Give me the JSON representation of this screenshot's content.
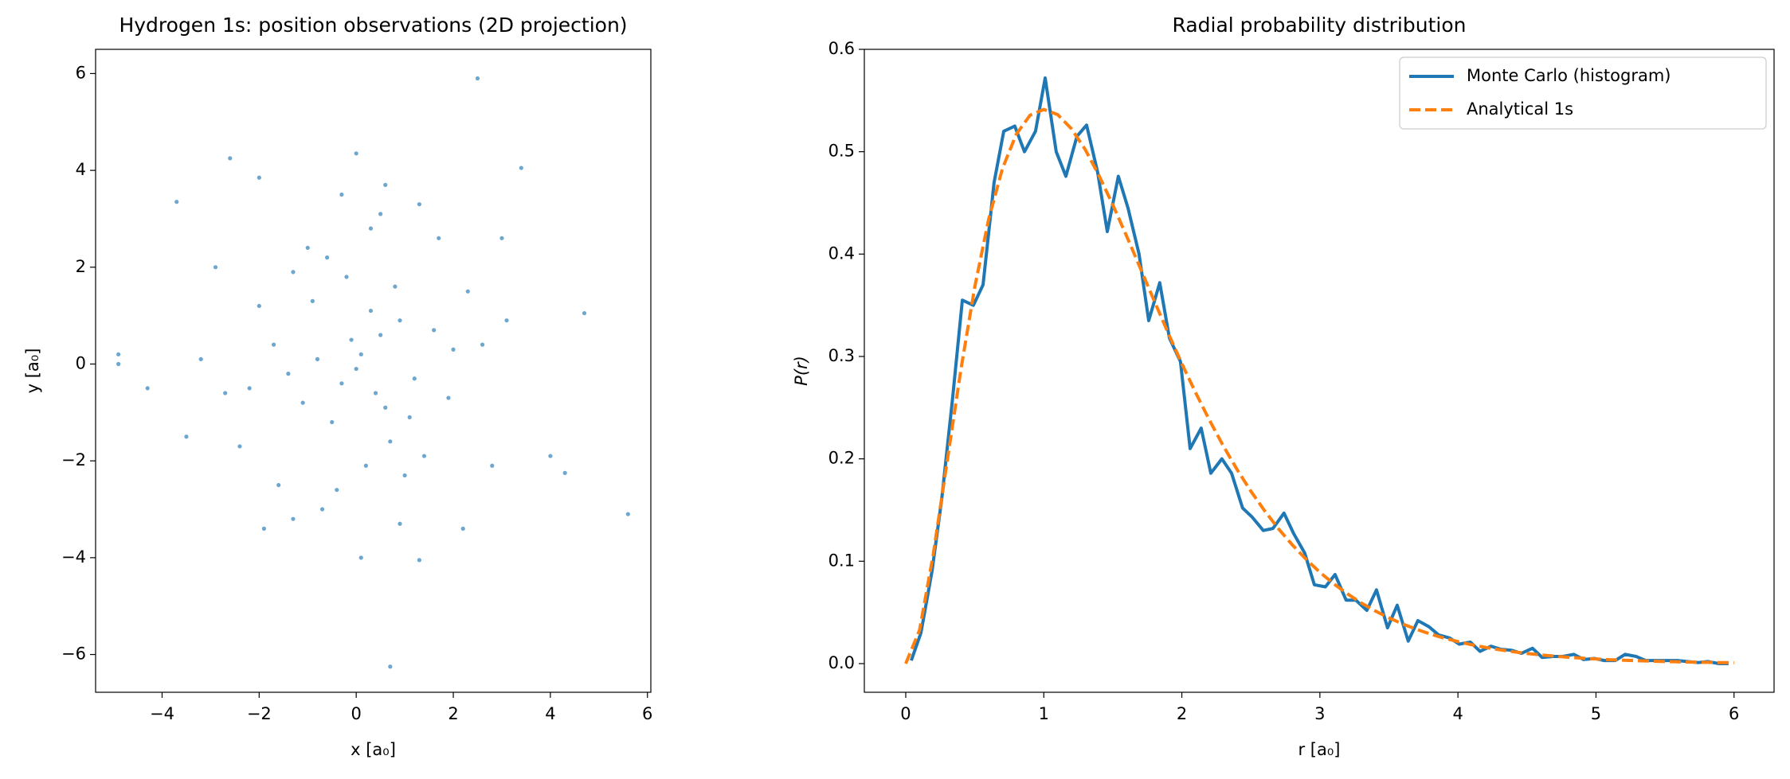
{
  "chart_data": [
    {
      "type": "scatter",
      "title": "Hydrogen 1s: position observations (2D projection)",
      "x_label": "x [a₀]",
      "y_label": "y [a₀]",
      "color": "#1f77b4",
      "x": [
        0.1,
        -0.3,
        0.5,
        -0.8,
        1.2,
        -1.1,
        0.3,
        0.9,
        -0.5,
        0.0,
        1.6,
        -1.7,
        0.7,
        -0.2,
        0.4,
        -0.9,
        1.1,
        -1.4,
        2.0,
        -2.2,
        0.2,
        -0.6,
        0.8,
        1.4,
        -1.3,
        0.6,
        -0.1,
        1.9,
        -2.0,
        2.6,
        -2.7,
        0.3,
        -0.4,
        1.0,
        -1.0,
        0.5,
        -0.7,
        2.3,
        -2.4,
        1.7,
        -1.6,
        3.1,
        -3.2,
        0.9,
        -0.3,
        1.3,
        -1.9,
        2.8,
        -2.9,
        0.1,
        2.5,
        0.7,
        5.6,
        -4.9,
        -4.9,
        4.7,
        -3.7,
        3.4,
        -2.6,
        0.0,
        1.3,
        -4.3,
        4.3,
        -2.0,
        3.0,
        -1.3,
        2.2,
        4.0,
        -3.5,
        0.6
      ],
      "y": [
        0.2,
        -0.4,
        0.6,
        0.1,
        -0.3,
        -0.8,
        1.1,
        0.9,
        -1.2,
        -0.1,
        0.7,
        0.4,
        -1.6,
        1.8,
        -0.6,
        1.3,
        -1.1,
        -0.2,
        0.3,
        -0.5,
        -2.1,
        2.2,
        1.6,
        -1.9,
        1.9,
        -0.9,
        0.5,
        -0.7,
        1.2,
        0.4,
        -0.6,
        2.8,
        -2.6,
        -2.3,
        2.4,
        3.1,
        -3.0,
        1.5,
        -1.7,
        2.6,
        -2.5,
        0.9,
        0.1,
        -3.3,
        3.5,
        3.3,
        -3.4,
        -2.1,
        2.0,
        -4.0,
        5.9,
        -6.25,
        -3.1,
        0.2,
        0.0,
        1.05,
        3.35,
        4.05,
        4.25,
        4.35,
        -4.05,
        -0.5,
        -2.25,
        3.85,
        2.6,
        -3.2,
        -3.4,
        -1.9,
        -1.5,
        3.7
      ],
      "xlim": [
        -5.37,
        6.07
      ],
      "ylim": [
        -6.78,
        6.5
      ],
      "xticks": [
        {
          "value": -4,
          "label": "−4"
        },
        {
          "value": -2,
          "label": "−2"
        },
        0,
        2,
        4,
        6
      ],
      "yticks": [
        {
          "value": -6,
          "label": "−6"
        },
        {
          "value": -4,
          "label": "−4"
        },
        {
          "value": -2,
          "label": "−2"
        },
        0,
        2,
        4,
        6
      ]
    },
    {
      "type": "line",
      "title": "Radial probability distribution",
      "x_label": "r [a₀]",
      "y_label": "P(r)",
      "legend": "upper right",
      "xlim": [
        -0.3,
        6.29
      ],
      "ylim": [
        -0.028,
        0.6
      ],
      "xticks": [
        0,
        1,
        2,
        3,
        4,
        5,
        6
      ],
      "yticks": [
        {
          "value": 0,
          "label": "0.0"
        },
        0.1,
        0.2,
        0.3,
        0.4,
        0.5,
        0.6
      ],
      "series": [
        {
          "name": "Monte Carlo (histogram)",
          "color": "#1f77b4",
          "dash": false,
          "x": [
            0.04,
            0.11,
            0.19,
            0.26,
            0.34,
            0.41,
            0.49,
            0.56,
            0.64,
            0.71,
            0.79,
            0.86,
            0.94,
            1.01,
            1.09,
            1.16,
            1.24,
            1.31,
            1.39,
            1.46,
            1.54,
            1.61,
            1.69,
            1.76,
            1.84,
            1.91,
            1.99,
            2.06,
            2.14,
            2.21,
            2.29,
            2.36,
            2.44,
            2.51,
            2.59,
            2.66,
            2.74,
            2.81,
            2.89,
            2.96,
            3.04,
            3.11,
            3.19,
            3.26,
            3.34,
            3.41,
            3.49,
            3.56,
            3.64,
            3.71,
            3.79,
            3.86,
            3.94,
            4.01,
            4.09,
            4.16,
            4.24,
            4.31,
            4.39,
            4.46,
            4.54,
            4.61,
            4.69,
            4.76,
            4.84,
            4.91,
            4.99,
            5.06,
            5.14,
            5.21,
            5.29,
            5.36,
            5.44,
            5.51,
            5.59,
            5.66,
            5.74,
            5.81,
            5.89,
            5.96
          ],
          "values": [
            0.003,
            0.03,
            0.09,
            0.16,
            0.26,
            0.355,
            0.35,
            0.37,
            0.47,
            0.52,
            0.525,
            0.5,
            0.52,
            0.572,
            0.5,
            0.476,
            0.515,
            0.526,
            0.48,
            0.422,
            0.476,
            0.445,
            0.4,
            0.335,
            0.372,
            0.318,
            0.295,
            0.21,
            0.23,
            0.186,
            0.2,
            0.186,
            0.152,
            0.143,
            0.13,
            0.132,
            0.147,
            0.127,
            0.108,
            0.077,
            0.075,
            0.087,
            0.062,
            0.062,
            0.052,
            0.072,
            0.035,
            0.057,
            0.022,
            0.042,
            0.036,
            0.028,
            0.025,
            0.019,
            0.021,
            0.012,
            0.017,
            0.014,
            0.013,
            0.01,
            0.015,
            0.006,
            0.007,
            0.007,
            0.009,
            0.004,
            0.005,
            0.003,
            0.003,
            0.009,
            0.007,
            0.003,
            0.003,
            0.003,
            0.003,
            0.002,
            0.001,
            0.002,
            0.0,
            0.0
          ]
        },
        {
          "name": "Analytical 1s",
          "color": "#ff7f0e",
          "dash": true,
          "x": [
            0,
            0.1,
            0.2,
            0.3,
            0.4,
            0.5,
            0.6,
            0.7,
            0.8,
            0.9,
            1.0,
            1.1,
            1.2,
            1.3,
            1.4,
            1.5,
            1.6,
            1.7,
            1.8,
            1.9,
            2.0,
            2.1,
            2.2,
            2.3,
            2.4,
            2.5,
            2.6,
            2.7,
            2.8,
            2.9,
            3.0,
            3.1,
            3.2,
            3.3,
            3.4,
            3.5,
            3.6,
            3.7,
            3.8,
            3.9,
            4.0,
            4.1,
            4.2,
            4.3,
            4.4,
            4.5,
            4.6,
            4.7,
            4.8,
            4.9,
            5.0,
            5.1,
            5.2,
            5.3,
            5.4,
            5.5,
            5.6,
            5.7,
            5.8,
            5.9,
            6.0
          ],
          "values": [
            0,
            0.0327,
            0.1073,
            0.1976,
            0.2876,
            0.3679,
            0.4337,
            0.4833,
            0.5169,
            0.5356,
            0.5413,
            0.5363,
            0.5225,
            0.5022,
            0.4767,
            0.4481,
            0.4176,
            0.386,
            0.3543,
            0.3232,
            0.293,
            0.2646,
            0.2378,
            0.2127,
            0.1896,
            0.1684,
            0.1492,
            0.1317,
            0.116,
            0.1019,
            0.0892,
            0.078,
            0.0681,
            0.0592,
            0.0515,
            0.0447,
            0.0387,
            0.0335,
            0.0289,
            0.0249,
            0.0215,
            0.0184,
            0.0158,
            0.0136,
            0.0116,
            0.0099,
            0.0085,
            0.0073,
            0.0062,
            0.0053,
            0.0045,
            0.0038,
            0.0033,
            0.0028,
            0.0024,
            0.002,
            0.0017,
            0.0014,
            0.0012,
            0.001,
            0.0009
          ]
        }
      ]
    }
  ]
}
